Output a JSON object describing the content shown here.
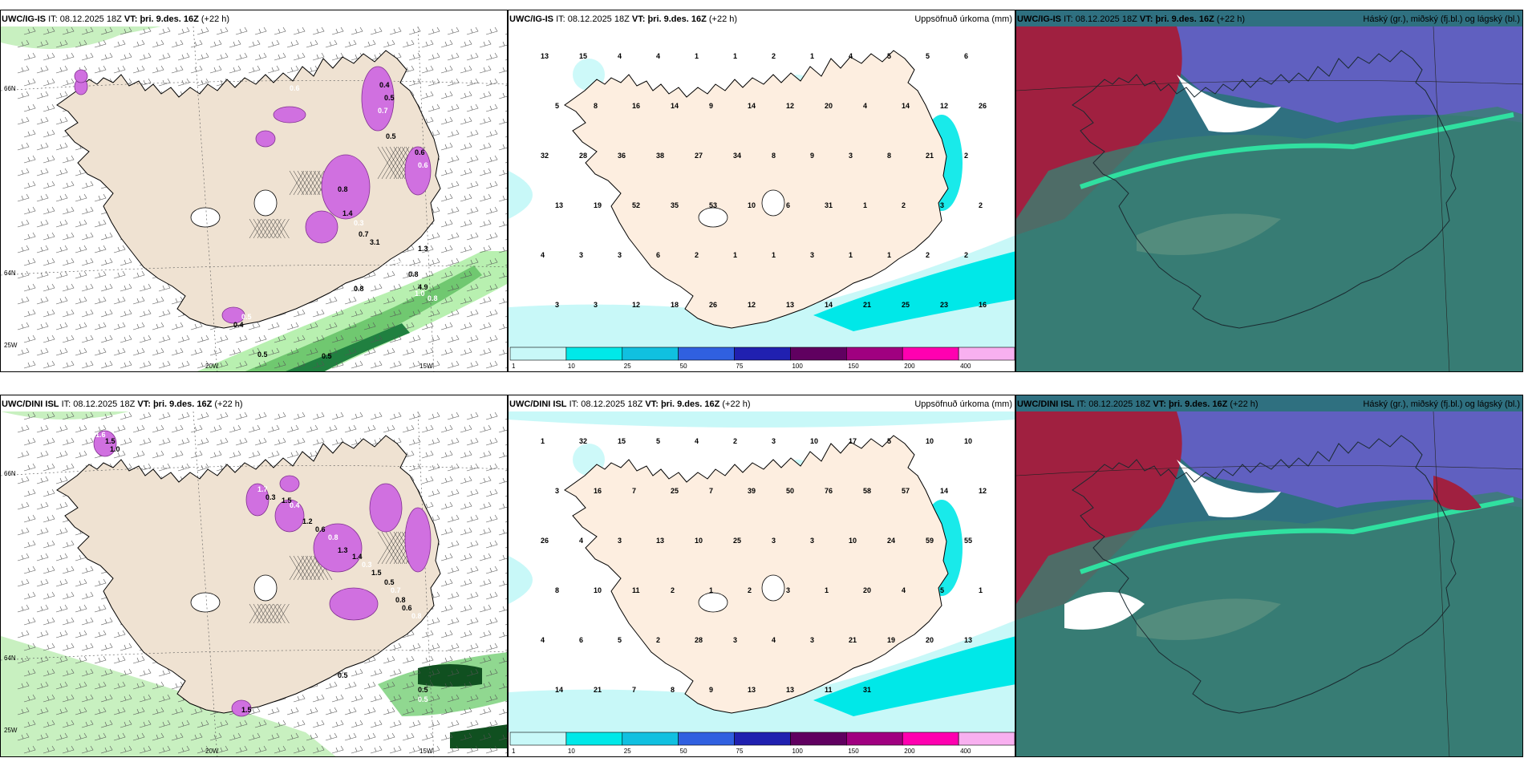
{
  "panels": {
    "r1c1": {
      "model": "UWC/IG-IS",
      "it_label": "IT:",
      "it_value": "08.12.2025 18Z",
      "vt_label": "VT:",
      "vt_value": "þri. 9.des. 16Z",
      "lead": "(+22 h)",
      "right_title": ""
    },
    "r1c2": {
      "model": "UWC/IG-IS",
      "it_label": "IT:",
      "it_value": "08.12.2025 18Z",
      "vt_label": "VT:",
      "vt_value": "þri. 9.des. 16Z",
      "lead": "(+22 h)",
      "right_title": "Uppsöfnuð úrkoma (mm)"
    },
    "r1c3": {
      "model": "UWC/IG-IS",
      "it_label": "IT:",
      "it_value": "08.12.2025 18Z",
      "vt_label": "VT:",
      "vt_value": "þri. 9.des. 16Z",
      "lead": "(+22 h)",
      "right_title": "Háský (gr.), miðský (fj.bl.) og lágský (bl.)"
    },
    "r2c1": {
      "model": "UWC/DINI ISL",
      "it_label": "IT:",
      "it_value": "08.12.2025 18Z",
      "vt_label": "VT:",
      "vt_value": "þri. 9.des. 16Z",
      "lead": "(+22 h)",
      "right_title": ""
    },
    "r2c2": {
      "model": "UWC/DINI ISL",
      "it_label": "IT:",
      "it_value": "08.12.2025 18Z",
      "vt_label": "VT:",
      "vt_value": "þri. 9.des. 16Z",
      "lead": "(+22 h)",
      "right_title": "Uppsöfnuð úrkoma (mm)"
    },
    "r2c3": {
      "model": "UWC/DINI ISL",
      "it_label": "IT:",
      "it_value": "08.12.2025 18Z",
      "vt_label": "VT:",
      "vt_value": "þri. 9.des. 16Z",
      "lead": "(+22 h)",
      "right_title": "Háský (gr.), miðský (fj.bl.) og lágský (bl.)"
    }
  },
  "axis_labels": {
    "lat66": "66N",
    "lat64": "64N",
    "lon20": "20W",
    "lon15": "15W",
    "lon25": "25W"
  },
  "colorbar": {
    "ticks": [
      "1",
      "10",
      "25",
      "50",
      "75",
      "100",
      "150",
      "200",
      "400"
    ],
    "colors": [
      "#c8f8f8",
      "#00e8e8",
      "#10c0e0",
      "#3060e0",
      "#2020b0",
      "#600060",
      "#a00080",
      "#ff00b0",
      "#f8b0f0"
    ]
  },
  "precip_labels_top": [
    "13",
    "15",
    "4",
    "4",
    "1",
    "1",
    "2",
    "1",
    "4",
    "5",
    "5",
    "6",
    "5",
    "8",
    "16",
    "14",
    "9",
    "14",
    "12",
    "20",
    "4",
    "14",
    "12",
    "26",
    "32",
    "28",
    "36",
    "38",
    "27",
    "34",
    "8",
    "9",
    "3",
    "8",
    "21",
    "2",
    "13",
    "19",
    "52",
    "35",
    "53",
    "10",
    "6",
    "31",
    "1",
    "2",
    "3",
    "2",
    "4",
    "3",
    "3",
    "6",
    "2",
    "1",
    "1",
    "3",
    "1",
    "1",
    "2",
    "2",
    "3",
    "3",
    "12",
    "18",
    "26",
    "12",
    "13",
    "14",
    "21",
    "25",
    "23",
    "16"
  ],
  "precip_labels_bottom": [
    "1",
    "32",
    "15",
    "5",
    "4",
    "2",
    "3",
    "10",
    "17",
    "5",
    "10",
    "10",
    "3",
    "16",
    "7",
    "25",
    "7",
    "39",
    "50",
    "76",
    "58",
    "57",
    "14",
    "12",
    "26",
    "4",
    "3",
    "13",
    "10",
    "25",
    "3",
    "3",
    "10",
    "24",
    "59",
    "55",
    "8",
    "10",
    "11",
    "2",
    "1",
    "2",
    "3",
    "1",
    "20",
    "4",
    "5",
    "1",
    "4",
    "6",
    "5",
    "2",
    "28",
    "3",
    "4",
    "3",
    "21",
    "19",
    "20",
    "13",
    "14",
    "21",
    "7",
    "8",
    "9",
    "13",
    "13",
    "11",
    "31"
  ],
  "wind_labels_top": [
    "0.6",
    "0.4",
    "0.5",
    "0.7",
    "0.5",
    "0.6",
    "0.6",
    "0.8",
    "1.4",
    "0.3",
    "0.7",
    "3.1",
    "0.8",
    "0.8",
    "4.9",
    "0.8",
    "0.5",
    "0.5",
    "1.0",
    "0.8",
    "1.3",
    "0.5",
    "0.4"
  ],
  "wind_labels_bottom": [
    "1.6",
    "1.5",
    "1.0",
    "1.7",
    "0.3",
    "1.5",
    "0.4",
    "1.2",
    "0.6",
    "0.8",
    "1.3",
    "1.4",
    "0.3",
    "1.5",
    "0.5",
    "0.7",
    "0.8",
    "0.6",
    "0.8",
    "0.5",
    "0.5",
    "0.5",
    "1.5"
  ]
}
